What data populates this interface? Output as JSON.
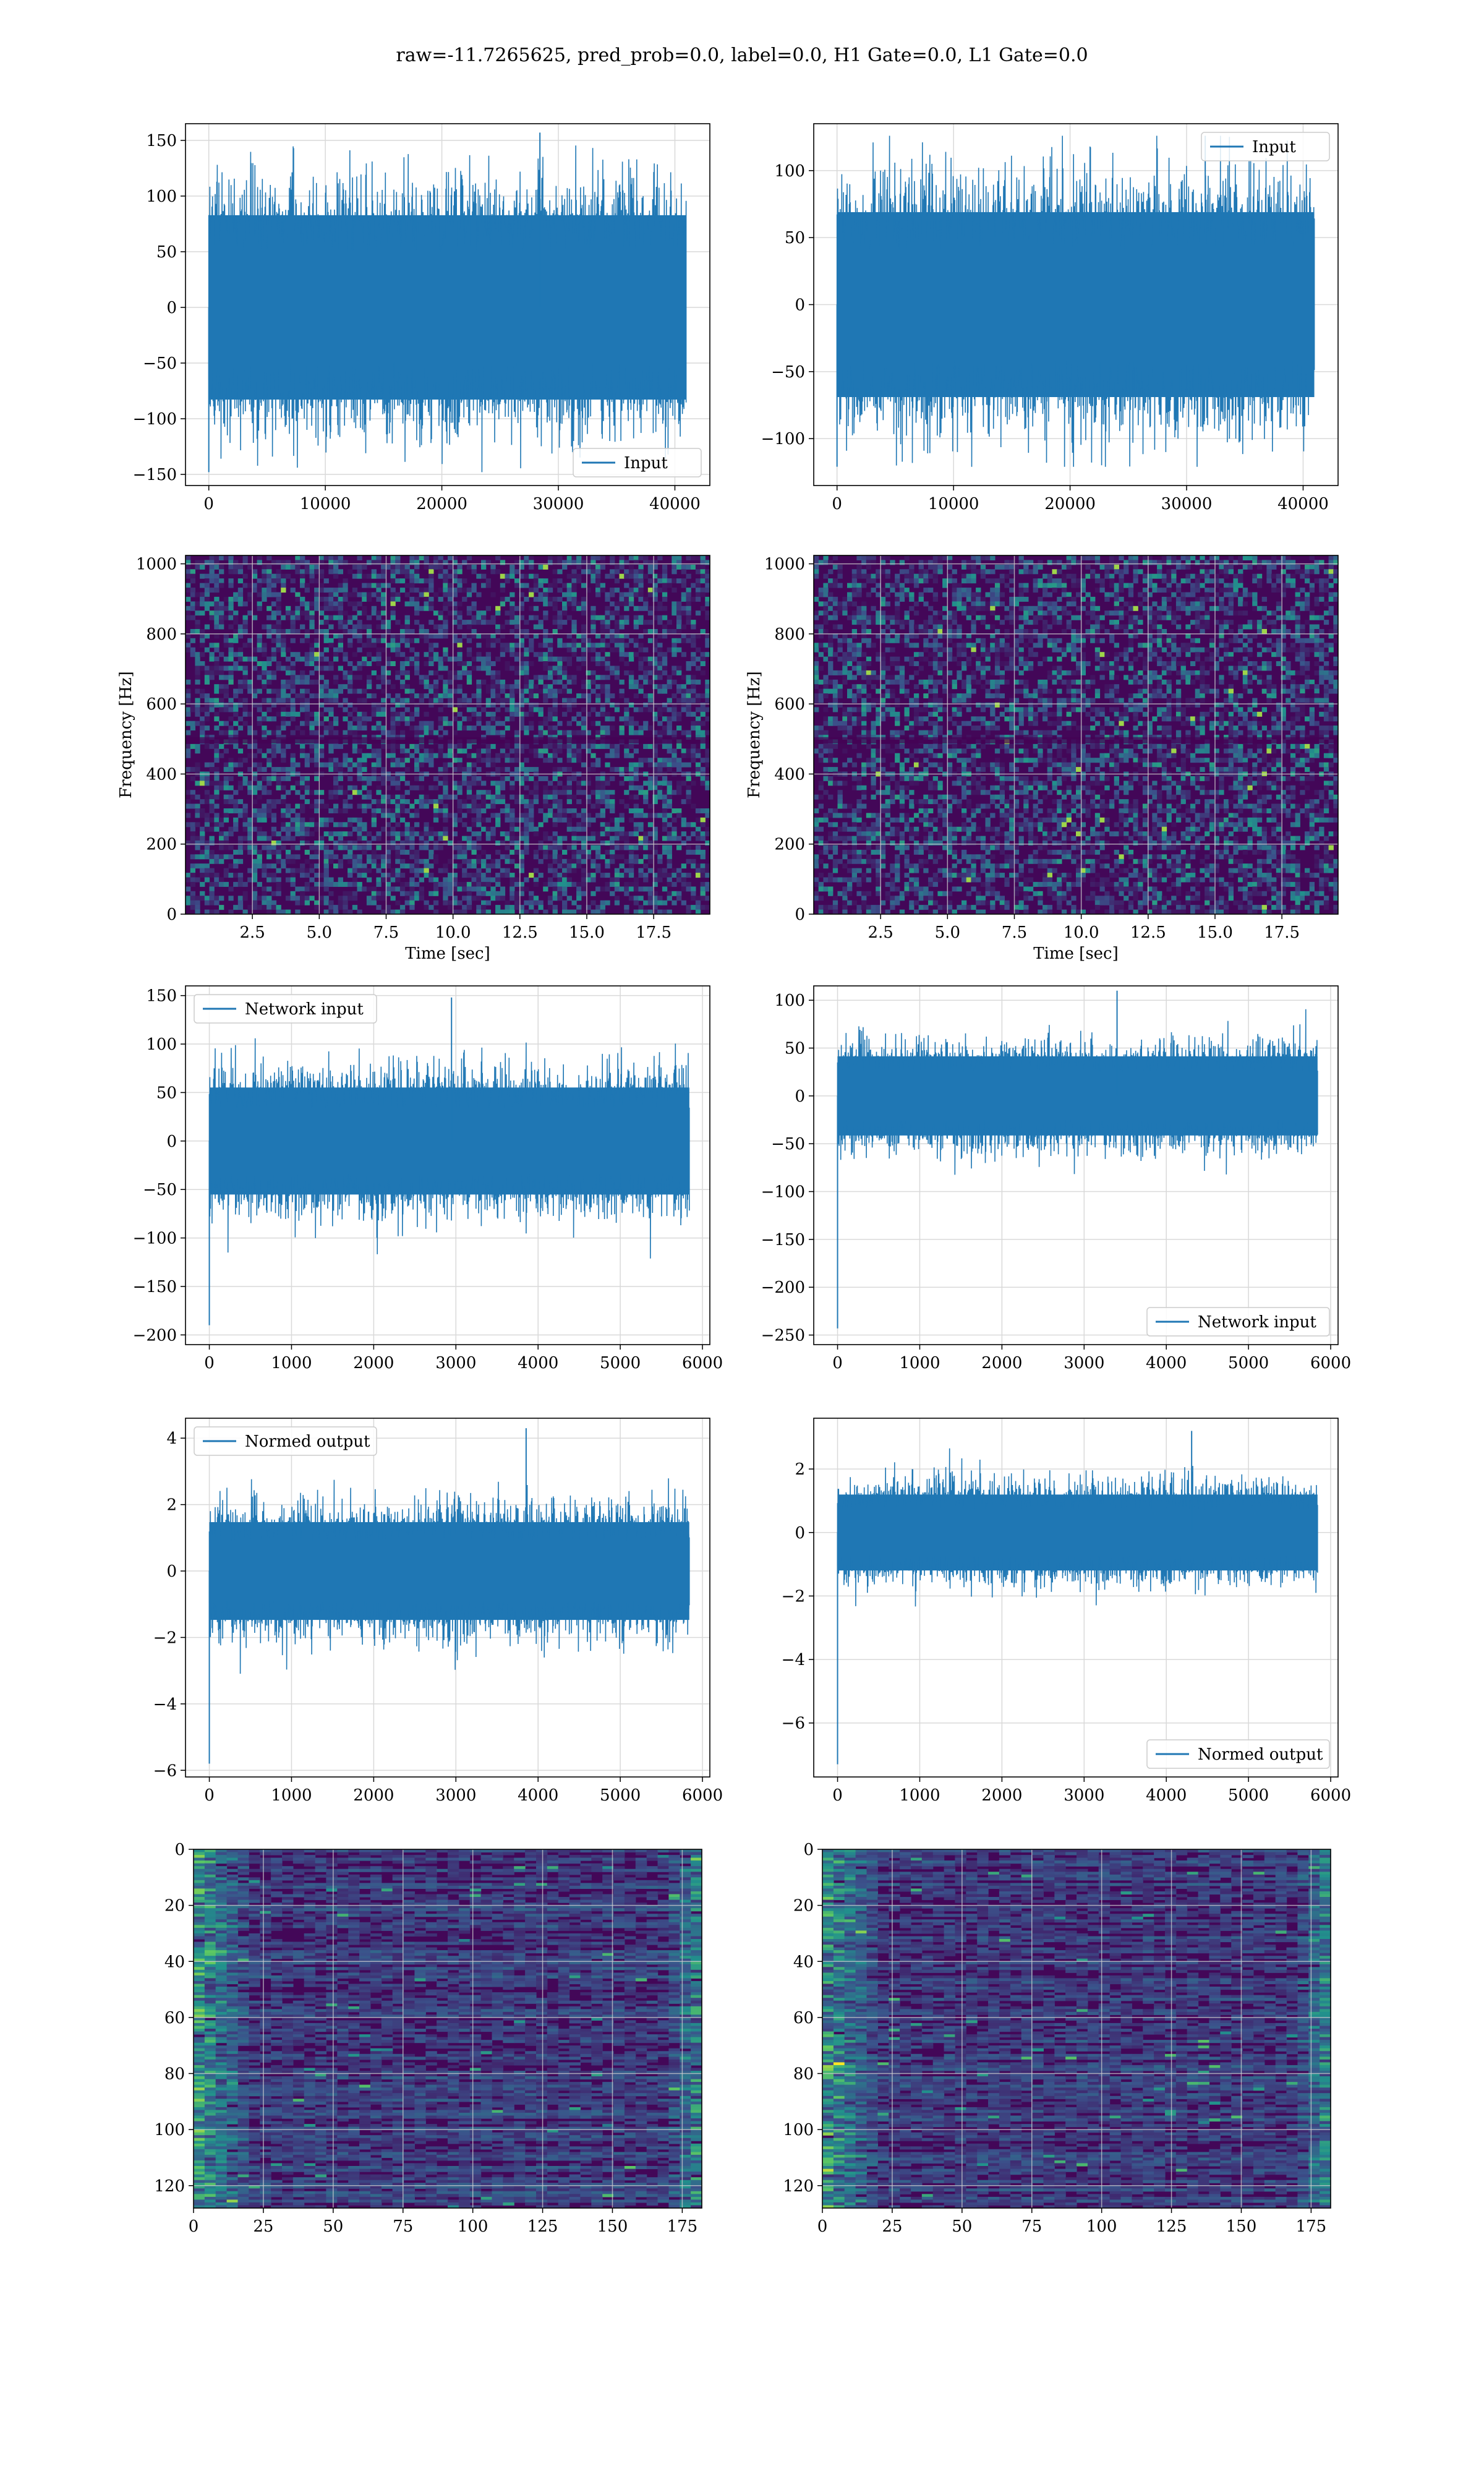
{
  "figure": {
    "suptitle": "raw=-11.7265625, pred_prob=0.0, label=0.0, H1 Gate=0.0, L1 Gate=0.0"
  },
  "colors": {
    "series": "#1f77b4",
    "grid": "#d9d9d9",
    "viridis": [
      "#440154",
      "#3b528b",
      "#21918c",
      "#5ec962",
      "#fde725"
    ]
  },
  "chart_data": [
    {
      "id": "input-h1",
      "type": "line",
      "title": "",
      "xlabel": "",
      "ylabel": "",
      "xlim": [
        -2000,
        43000
      ],
      "ylim": [
        -160,
        165
      ],
      "grid": true,
      "xticks": [
        0,
        10000,
        20000,
        30000,
        40000
      ],
      "yticks": [
        -150,
        -100,
        -50,
        0,
        50,
        100,
        150
      ],
      "legend": {
        "entries": [
          "Input"
        ],
        "loc": "lower-right"
      },
      "series": [
        {
          "name": "Input",
          "x_range": [
            0,
            40960
          ],
          "envelope_core": [
            -90,
            90
          ],
          "spike_extent": [
            -148,
            157
          ]
        }
      ]
    },
    {
      "id": "input-l1",
      "type": "line",
      "title": "",
      "xlabel": "",
      "ylabel": "",
      "xlim": [
        -2000,
        43000
      ],
      "ylim": [
        -135,
        135
      ],
      "grid": true,
      "xticks": [
        0,
        10000,
        20000,
        30000,
        40000
      ],
      "yticks": [
        -100,
        -50,
        0,
        50,
        100
      ],
      "legend": {
        "entries": [
          "Input"
        ],
        "loc": "upper-right"
      },
      "series": [
        {
          "name": "Input",
          "x_range": [
            0,
            40960
          ],
          "envelope_core": [
            -75,
            75
          ],
          "spike_extent": [
            -121,
            126
          ]
        }
      ]
    },
    {
      "id": "spectrogram-h1",
      "type": "heatmap",
      "title": "",
      "xlabel": "Time [sec]",
      "ylabel": "Frequency [Hz]",
      "xlim": [
        0,
        19.6
      ],
      "ylim": [
        0,
        1024
      ],
      "grid": true,
      "xticks": [
        2.5,
        5.0,
        7.5,
        10.0,
        12.5,
        15.0,
        17.5
      ],
      "yticks": [
        0,
        200,
        400,
        600,
        800,
        1000
      ],
      "colormap": "viridis"
    },
    {
      "id": "spectrogram-l1",
      "type": "heatmap",
      "title": "",
      "xlabel": "Time [sec]",
      "ylabel": "Frequency [Hz]",
      "xlim": [
        0,
        19.6
      ],
      "ylim": [
        0,
        1024
      ],
      "grid": true,
      "xticks": [
        2.5,
        5.0,
        7.5,
        10.0,
        12.5,
        15.0,
        17.5
      ],
      "yticks": [
        0,
        200,
        400,
        600,
        800,
        1000
      ],
      "colormap": "viridis"
    },
    {
      "id": "network-input-h1",
      "type": "line",
      "title": "",
      "xlabel": "",
      "ylabel": "",
      "xlim": [
        -290,
        6090
      ],
      "ylim": [
        -210,
        160
      ],
      "grid": true,
      "xticks": [
        0,
        1000,
        2000,
        3000,
        4000,
        5000,
        6000
      ],
      "yticks": [
        -200,
        -150,
        -100,
        -50,
        0,
        50,
        100,
        150
      ],
      "legend": {
        "entries": [
          "Network input"
        ],
        "loc": "upper-left"
      },
      "series": [
        {
          "name": "Network input",
          "x_range": [
            0,
            5840
          ],
          "envelope_core": [
            -60,
            60
          ],
          "spike_extent": [
            -190,
            148
          ]
        }
      ]
    },
    {
      "id": "network-input-l1",
      "type": "line",
      "title": "",
      "xlabel": "",
      "ylabel": "",
      "xlim": [
        -290,
        6090
      ],
      "ylim": [
        -260,
        115
      ],
      "grid": true,
      "xticks": [
        0,
        1000,
        2000,
        3000,
        4000,
        5000,
        6000
      ],
      "yticks": [
        -250,
        -200,
        -150,
        -100,
        -50,
        0,
        50,
        100
      ],
      "legend": {
        "entries": [
          "Network input"
        ],
        "loc": "lower-right"
      },
      "series": [
        {
          "name": "Network input",
          "x_range": [
            0,
            5840
          ],
          "envelope_core": [
            -45,
            45
          ],
          "spike_extent": [
            -243,
            110
          ]
        }
      ]
    },
    {
      "id": "normed-output-h1",
      "type": "line",
      "title": "",
      "xlabel": "",
      "ylabel": "",
      "xlim": [
        -290,
        6090
      ],
      "ylim": [
        -6.2,
        4.6
      ],
      "grid": true,
      "xticks": [
        0,
        1000,
        2000,
        3000,
        4000,
        5000,
        6000
      ],
      "yticks": [
        -6,
        -4,
        -2,
        0,
        2,
        4
      ],
      "legend": {
        "entries": [
          "Normed output"
        ],
        "loc": "upper-left"
      },
      "series": [
        {
          "name": "Normed output",
          "x_range": [
            0,
            5840
          ],
          "envelope_core": [
            -1.6,
            1.6
          ],
          "spike_extent": [
            -5.8,
            4.3
          ]
        }
      ]
    },
    {
      "id": "normed-output-l1",
      "type": "line",
      "title": "",
      "xlabel": "",
      "ylabel": "",
      "xlim": [
        -290,
        6090
      ],
      "ylim": [
        -7.7,
        3.6
      ],
      "grid": true,
      "xticks": [
        0,
        1000,
        2000,
        3000,
        4000,
        5000,
        6000
      ],
      "yticks": [
        -6,
        -4,
        -2,
        0,
        2
      ],
      "legend": {
        "entries": [
          "Normed output"
        ],
        "loc": "lower-right"
      },
      "series": [
        {
          "name": "Normed output",
          "x_range": [
            0,
            5840
          ],
          "envelope_core": [
            -1.3,
            1.3
          ],
          "spike_extent": [
            -7.3,
            3.2
          ]
        }
      ]
    },
    {
      "id": "feature-map-h1",
      "type": "heatmap",
      "title": "",
      "xlabel": "",
      "ylabel": "",
      "xlim": [
        0,
        182
      ],
      "ylim": [
        128,
        0
      ],
      "grid": true,
      "xticks": [
        0,
        25,
        50,
        75,
        100,
        125,
        150,
        175
      ],
      "yticks": [
        0,
        20,
        40,
        60,
        80,
        100,
        120
      ],
      "colormap": "viridis"
    },
    {
      "id": "feature-map-l1",
      "type": "heatmap",
      "title": "",
      "xlabel": "",
      "ylabel": "",
      "xlim": [
        0,
        182
      ],
      "ylim": [
        128,
        0
      ],
      "grid": true,
      "xticks": [
        0,
        25,
        50,
        75,
        100,
        125,
        150,
        175
      ],
      "yticks": [
        0,
        20,
        40,
        60,
        80,
        100,
        120
      ],
      "colormap": "viridis"
    }
  ]
}
